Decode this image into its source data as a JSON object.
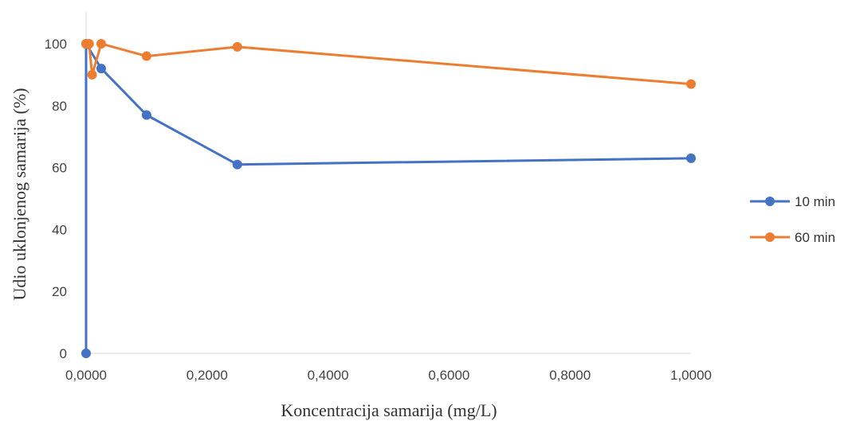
{
  "chart_data": {
    "type": "line",
    "xlabel": "Koncentracija samarija (mg/L)",
    "ylabel": "Udio uklonjenog samarija (%)",
    "xlim": [
      0,
      1
    ],
    "ylim": [
      0,
      100
    ],
    "x_ticks": [
      "0,0000",
      "0,2000",
      "0,4000",
      "0,6000",
      "0,8000",
      "1,0000"
    ],
    "y_ticks": [
      "0",
      "20",
      "40",
      "60",
      "80",
      "100"
    ],
    "grid": false,
    "legend_position": "right",
    "series": [
      {
        "name": "10 min",
        "color": "#4472C4",
        "x": [
          0.0,
          0.0,
          0.025,
          0.1,
          0.25,
          1.0
        ],
        "y": [
          0,
          100,
          92,
          77,
          61,
          63
        ]
      },
      {
        "name": "60 min",
        "color": "#ED7D31",
        "x": [
          0.0,
          0.005,
          0.01,
          0.025,
          0.1,
          0.25,
          1.0
        ],
        "y": [
          100,
          100,
          90,
          100,
          96,
          99,
          87
        ]
      }
    ]
  }
}
